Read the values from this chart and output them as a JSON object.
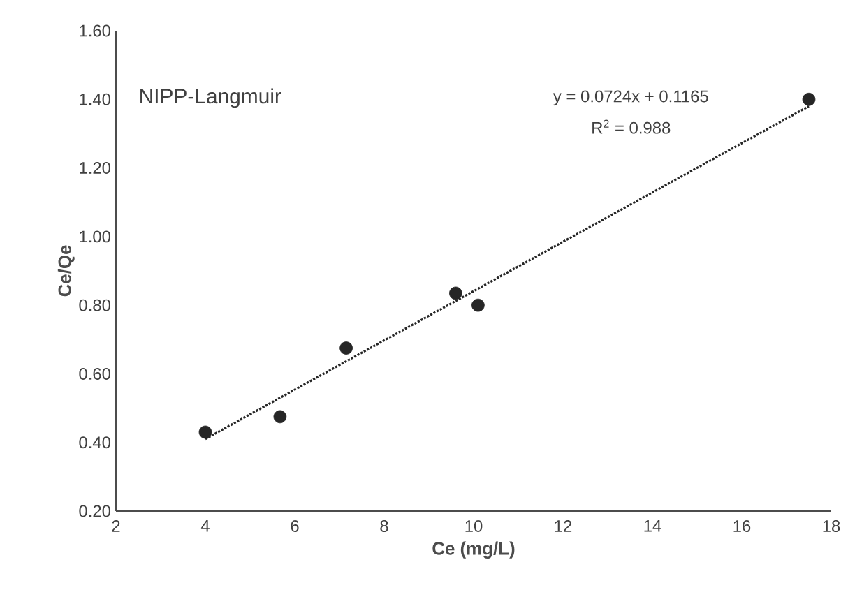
{
  "chart_data": {
    "type": "scatter",
    "xlabel": "Ce (mg/L)",
    "ylabel": "Ce/Qe",
    "annotations": [
      "NIPP-Langmuir",
      "y = 0.0724x + 0.1165",
      "R$^{2}$ = 0.988"
    ],
    "series": [
      {
        "color": "#262626",
        "marker": "circle",
        "x": [
          4.0,
          5.67,
          7.15,
          9.6,
          10.1,
          17.5
        ],
        "values": [
          0.43,
          0.475,
          0.675,
          0.835,
          0.8,
          1.4
        ]
      },
      {
        "type": "line",
        "color": "#262626",
        "line_style": "dotted",
        "marker": "none",
        "x": [
          4.0,
          17.5
        ],
        "values": [
          0.41,
          1.38
        ]
      }
    ],
    "xlim": [
      2,
      18
    ],
    "ylim": [
      0.2,
      1.6
    ],
    "xticks": [
      2,
      4,
      6,
      8,
      10,
      12,
      14,
      16,
      18
    ],
    "yticks": [
      {
        "value": 0.2,
        "label": "0.20"
      },
      {
        "value": 0.4,
        "label": "0.40"
      },
      {
        "value": 0.6,
        "label": "0.60"
      },
      {
        "value": 0.8,
        "label": "0.80"
      },
      {
        "value": 1.0,
        "label": "1.00"
      },
      {
        "value": 1.2,
        "label": "1.20"
      },
      {
        "value": 1.4,
        "label": "1.40"
      },
      {
        "value": 1.6,
        "label": "1.60"
      }
    ],
    "grid": false
  }
}
